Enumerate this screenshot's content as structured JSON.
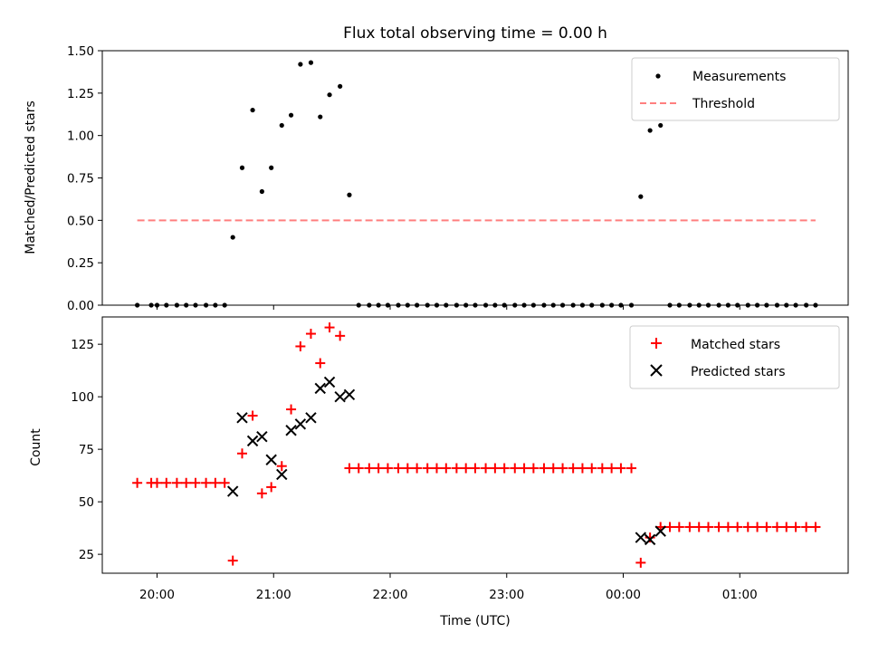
{
  "chart_data": {
    "title": "Flux total observing time = 0.00 h",
    "xlabel": "Time (UTC)",
    "x_ticks": [
      "20:00",
      "21:00",
      "22:00",
      "23:00",
      "00:00",
      "01:00"
    ],
    "x_tick_hours": [
      20,
      21,
      22,
      23,
      24,
      25
    ],
    "x_range_hours": [
      19.53,
      25.93
    ],
    "panels": [
      {
        "type": "scatter",
        "ylabel": "Matched/Predicted stars",
        "ylim": [
          0,
          1.5
        ],
        "yticks": [
          0.0,
          0.25,
          0.5,
          0.75,
          1.0,
          1.25,
          1.5
        ],
        "ytick_labels": [
          "0.00",
          "0.25",
          "0.50",
          "0.75",
          "1.00",
          "1.25",
          "1.50"
        ],
        "legend_position": "upper-right",
        "series": [
          {
            "name": "Measurements",
            "marker": "dot",
            "color": "#000000",
            "points": [
              [
                19.83,
                0
              ],
              [
                19.95,
                0
              ],
              [
                20.0,
                0
              ],
              [
                20.08,
                0
              ],
              [
                20.17,
                0
              ],
              [
                20.25,
                0
              ],
              [
                20.33,
                0
              ],
              [
                20.42,
                0
              ],
              [
                20.5,
                0
              ],
              [
                20.58,
                0
              ],
              [
                20.65,
                0.4
              ],
              [
                20.73,
                0.81
              ],
              [
                20.82,
                1.15
              ],
              [
                20.9,
                0.67
              ],
              [
                20.98,
                0.81
              ],
              [
                21.07,
                1.06
              ],
              [
                21.15,
                1.12
              ],
              [
                21.23,
                1.42
              ],
              [
                21.32,
                1.43
              ],
              [
                21.4,
                1.11
              ],
              [
                21.48,
                1.24
              ],
              [
                21.57,
                1.29
              ],
              [
                21.65,
                0.65
              ],
              [
                21.73,
                0
              ],
              [
                21.82,
                0
              ],
              [
                21.9,
                0
              ],
              [
                21.98,
                0
              ],
              [
                22.07,
                0
              ],
              [
                22.15,
                0
              ],
              [
                22.23,
                0
              ],
              [
                22.32,
                0
              ],
              [
                22.4,
                0
              ],
              [
                22.48,
                0
              ],
              [
                22.57,
                0
              ],
              [
                22.65,
                0
              ],
              [
                22.73,
                0
              ],
              [
                22.82,
                0
              ],
              [
                22.9,
                0
              ],
              [
                22.98,
                0
              ],
              [
                23.07,
                0
              ],
              [
                23.15,
                0
              ],
              [
                23.23,
                0
              ],
              [
                23.32,
                0
              ],
              [
                23.4,
                0
              ],
              [
                23.48,
                0
              ],
              [
                23.57,
                0
              ],
              [
                23.65,
                0
              ],
              [
                23.73,
                0
              ],
              [
                23.82,
                0
              ],
              [
                23.9,
                0
              ],
              [
                23.98,
                0
              ],
              [
                24.07,
                0
              ],
              [
                24.15,
                0.64
              ],
              [
                24.23,
                1.03
              ],
              [
                24.32,
                1.06
              ],
              [
                24.4,
                0
              ],
              [
                24.48,
                0
              ],
              [
                24.57,
                0
              ],
              [
                24.65,
                0
              ],
              [
                24.73,
                0
              ],
              [
                24.82,
                0
              ],
              [
                24.9,
                0
              ],
              [
                24.98,
                0
              ],
              [
                25.07,
                0
              ],
              [
                25.15,
                0
              ],
              [
                25.23,
                0
              ],
              [
                25.32,
                0
              ],
              [
                25.4,
                0
              ],
              [
                25.48,
                0
              ],
              [
                25.57,
                0
              ],
              [
                25.65,
                0
              ]
            ]
          },
          {
            "name": "Threshold",
            "marker": "dashed-line",
            "color": "#ff7f7f",
            "points": [
              [
                19.83,
                0.5
              ],
              [
                25.65,
                0.5
              ]
            ]
          }
        ]
      },
      {
        "type": "scatter",
        "ylabel": "Count",
        "ylim": [
          16,
          138
        ],
        "yticks": [
          25,
          50,
          75,
          100,
          125
        ],
        "ytick_labels": [
          "25",
          "50",
          "75",
          "100",
          "125"
        ],
        "legend_position": "upper-right",
        "series": [
          {
            "name": "Matched stars",
            "marker": "plus",
            "color": "#ff0000",
            "points": [
              [
                19.83,
                59
              ],
              [
                19.95,
                59
              ],
              [
                20.0,
                59
              ],
              [
                20.08,
                59
              ],
              [
                20.17,
                59
              ],
              [
                20.25,
                59
              ],
              [
                20.33,
                59
              ],
              [
                20.42,
                59
              ],
              [
                20.5,
                59
              ],
              [
                20.58,
                59
              ],
              [
                20.65,
                22
              ],
              [
                20.73,
                73
              ],
              [
                20.82,
                91
              ],
              [
                20.9,
                54
              ],
              [
                20.98,
                57
              ],
              [
                21.07,
                67
              ],
              [
                21.15,
                94
              ],
              [
                21.23,
                124
              ],
              [
                21.32,
                130
              ],
              [
                21.4,
                116
              ],
              [
                21.48,
                133
              ],
              [
                21.57,
                129
              ],
              [
                21.65,
                66
              ],
              [
                21.73,
                66
              ],
              [
                21.82,
                66
              ],
              [
                21.9,
                66
              ],
              [
                21.98,
                66
              ],
              [
                22.07,
                66
              ],
              [
                22.15,
                66
              ],
              [
                22.23,
                66
              ],
              [
                22.32,
                66
              ],
              [
                22.4,
                66
              ],
              [
                22.48,
                66
              ],
              [
                22.57,
                66
              ],
              [
                22.65,
                66
              ],
              [
                22.73,
                66
              ],
              [
                22.82,
                66
              ],
              [
                22.9,
                66
              ],
              [
                22.98,
                66
              ],
              [
                23.07,
                66
              ],
              [
                23.15,
                66
              ],
              [
                23.23,
                66
              ],
              [
                23.32,
                66
              ],
              [
                23.4,
                66
              ],
              [
                23.48,
                66
              ],
              [
                23.57,
                66
              ],
              [
                23.65,
                66
              ],
              [
                23.73,
                66
              ],
              [
                23.82,
                66
              ],
              [
                23.9,
                66
              ],
              [
                23.98,
                66
              ],
              [
                24.07,
                66
              ],
              [
                24.15,
                21
              ],
              [
                24.23,
                33
              ],
              [
                24.32,
                38
              ],
              [
                24.4,
                38
              ],
              [
                24.48,
                38
              ],
              [
                24.57,
                38
              ],
              [
                24.65,
                38
              ],
              [
                24.73,
                38
              ],
              [
                24.82,
                38
              ],
              [
                24.9,
                38
              ],
              [
                24.98,
                38
              ],
              [
                25.07,
                38
              ],
              [
                25.15,
                38
              ],
              [
                25.23,
                38
              ],
              [
                25.32,
                38
              ],
              [
                25.4,
                38
              ],
              [
                25.48,
                38
              ],
              [
                25.57,
                38
              ],
              [
                25.65,
                38
              ]
            ]
          },
          {
            "name": "Predicted stars",
            "marker": "x",
            "color": "#000000",
            "points": [
              [
                20.65,
                55
              ],
              [
                20.73,
                90
              ],
              [
                20.82,
                79
              ],
              [
                20.9,
                81
              ],
              [
                20.98,
                70
              ],
              [
                21.07,
                63
              ],
              [
                21.15,
                84
              ],
              [
                21.23,
                87
              ],
              [
                21.32,
                90
              ],
              [
                21.4,
                104
              ],
              [
                21.48,
                107
              ],
              [
                21.57,
                100
              ],
              [
                21.65,
                101
              ],
              [
                24.15,
                33
              ],
              [
                24.23,
                32
              ],
              [
                24.32,
                36
              ]
            ]
          }
        ]
      }
    ]
  }
}
